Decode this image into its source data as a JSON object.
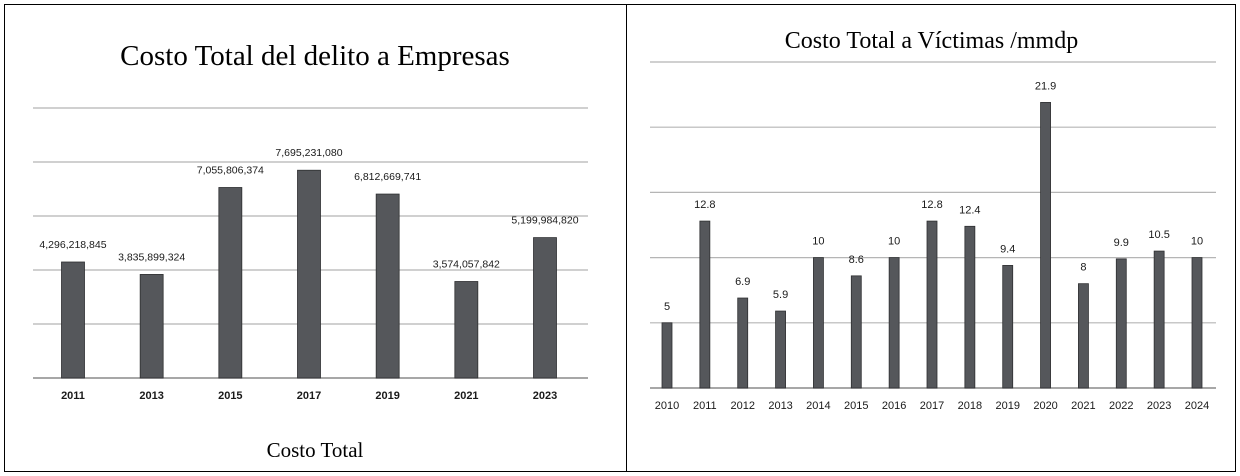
{
  "charts": {
    "left": {
      "title": "Costo Total del delito a Empresas",
      "caption": "Costo Total"
    },
    "right": {
      "title": "Costo Total a Víctimas /mmdp"
    }
  },
  "colors": {
    "bar": "#55575b",
    "grid": "#b5b5b5",
    "text": "#1a1a1a"
  },
  "chart_data": [
    {
      "type": "bar",
      "title": "Costo Total del delito a Empresas",
      "xlabel": "Costo Total",
      "ylabel": "",
      "categories": [
        "2011",
        "2013",
        "2015",
        "2017",
        "2019",
        "2021",
        "2023"
      ],
      "values": [
        4296218845,
        3835899324,
        7055806374,
        7695231080,
        6812669741,
        3574057842,
        5199984820
      ],
      "value_labels": [
        "4,296,218,845",
        "3,835,899,324",
        "7,055,806,374",
        "7,695,231,080",
        "6,812,669,741",
        "3,574,057,842",
        "5,199,984,820"
      ],
      "ylim": [
        0,
        10000000000
      ],
      "grid": true,
      "legend": "none"
    },
    {
      "type": "bar",
      "title": "Costo Total a Víctimas /mmdp",
      "xlabel": "",
      "ylabel": "",
      "categories": [
        "2010",
        "2011",
        "2012",
        "2013",
        "2014",
        "2015",
        "2016",
        "2017",
        "2018",
        "2019",
        "2020",
        "2021",
        "2022",
        "2023",
        "2024"
      ],
      "values": [
        5,
        12.8,
        6.9,
        5.9,
        10,
        8.6,
        10,
        12.8,
        12.4,
        9.4,
        21.9,
        8,
        9.9,
        10.5,
        10
      ],
      "value_labels": [
        "5",
        "12.8",
        "6.9",
        "5.9",
        "10",
        "8.6",
        "10",
        "12.8",
        "12.4",
        "9.4",
        "21.9",
        "8",
        "9.9",
        "10.5",
        "10"
      ],
      "ylim": [
        0,
        25
      ],
      "grid": true,
      "legend": "none"
    }
  ]
}
